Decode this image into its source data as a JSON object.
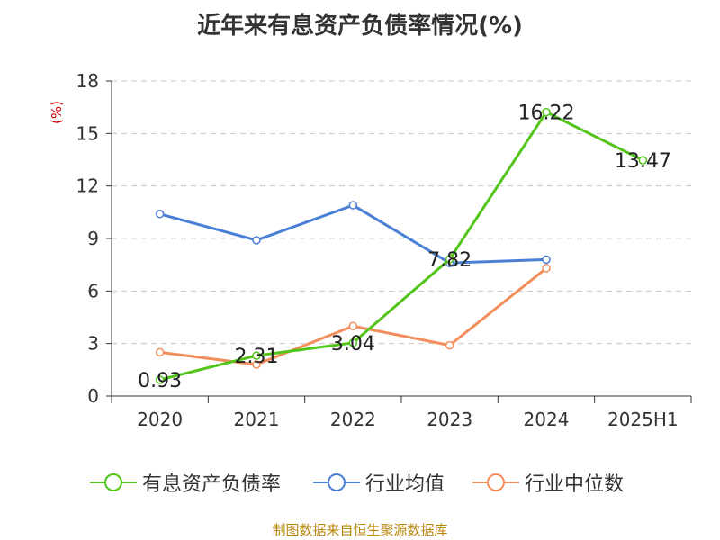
{
  "chart_data": {
    "type": "line",
    "title": "近年来有息资产负债率情况(%)",
    "ylabel": "(%)",
    "xlabel": "",
    "categories": [
      "2020",
      "2021",
      "2022",
      "2023",
      "2024",
      "2025H1"
    ],
    "ylim": [
      0,
      18
    ],
    "yticks": [
      0,
      3,
      6,
      9,
      12,
      15,
      18
    ],
    "grid": true,
    "legend_position": "bottom",
    "series": [
      {
        "name": "有息资产负债率",
        "color": "#52c41a",
        "values": [
          0.93,
          2.31,
          3.04,
          7.82,
          16.22,
          13.47
        ],
        "labels": [
          "0.93",
          "2.31",
          "3.04",
          "7.82",
          "16.22",
          "13.47"
        ]
      },
      {
        "name": "行业均值",
        "color": "#4a7fd6",
        "values": [
          10.4,
          8.9,
          10.9,
          7.6,
          7.8,
          null
        ]
      },
      {
        "name": "行业中位数",
        "color": "#f28e5c",
        "values": [
          2.5,
          1.8,
          4.0,
          2.9,
          7.3,
          null
        ]
      }
    ]
  },
  "footer": "制图数据来自恒生聚源数据库"
}
